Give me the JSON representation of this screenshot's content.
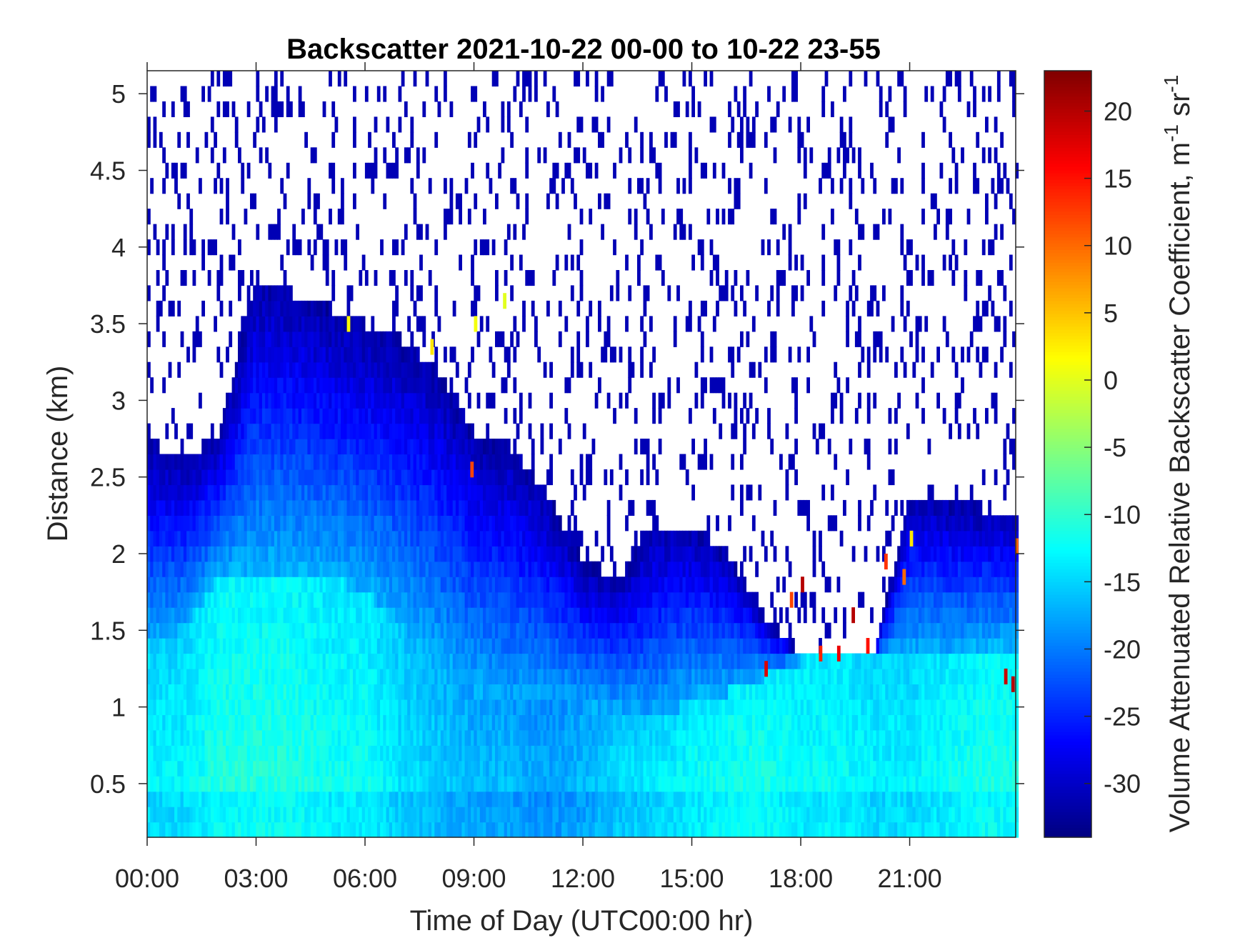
{
  "chart_data": {
    "type": "heatmap",
    "title": "Backscatter 2021-10-22 00-00 to 10-22 23-55",
    "xlabel": "Time of Day (UTC00:00 hr)",
    "ylabel": "Distance (km)",
    "colorbar_label": "Volume Attenuated Relative Backscatter Coefficient, m",
    "colorbar_label_sup1": "-1",
    "colorbar_label_mid": " sr",
    "colorbar_label_sup2": "-1",
    "colormap": "jet",
    "xlim": [
      0,
      23.92
    ],
    "ylim": [
      0.15,
      5.15
    ],
    "clim": [
      -34,
      23
    ],
    "x_ticks": [
      0,
      3,
      6,
      9,
      12,
      15,
      18,
      21
    ],
    "x_tick_labels": [
      "00:00",
      "03:00",
      "06:00",
      "09:00",
      "12:00",
      "15:00",
      "18:00",
      "21:00"
    ],
    "y_ticks": [
      0.5,
      1,
      1.5,
      2,
      2.5,
      3,
      3.5,
      4,
      4.5,
      5
    ],
    "y_tick_labels": [
      "0.5",
      "1",
      "1.5",
      "2",
      "2.5",
      "3",
      "3.5",
      "4",
      "4.5",
      "5"
    ],
    "colorbar_ticks": [
      -30,
      -25,
      -20,
      -15,
      -10,
      -5,
      0,
      5,
      10,
      15,
      20
    ],
    "colorbar_tick_labels": [
      "-30",
      "-25",
      "-20",
      "-15",
      "-10",
      "-5",
      "0",
      "5",
      "10",
      "15",
      "20"
    ],
    "time_resolution_hr": 0.0833,
    "height_resolution_km": 0.1,
    "profile_times_hr": [
      0,
      1,
      2,
      3,
      4,
      5,
      6,
      7,
      8,
      9,
      10,
      11,
      12,
      13,
      14,
      15,
      16,
      17,
      18,
      19,
      20,
      21,
      22,
      23
    ],
    "signal_top_km": [
      2.75,
      2.6,
      2.8,
      3.8,
      3.7,
      3.6,
      3.5,
      3.4,
      3.2,
      2.8,
      2.7,
      2.4,
      1.95,
      1.85,
      2.2,
      2.2,
      2.0,
      1.6,
      1.35,
      1.3,
      1.3,
      2.4,
      2.35,
      2.3
    ],
    "mixed_layer_top_km": [
      1.4,
      1.5,
      1.85,
      1.9,
      1.9,
      1.85,
      1.75,
      1.55,
      1.3,
      1.1,
      1.0,
      1.0,
      1.0,
      0.95,
      0.9,
      1.05,
      1.1,
      1.2,
      1.3,
      1.35,
      1.35,
      1.35,
      1.35,
      1.4
    ],
    "mixed_layer_value": [
      -12,
      -12,
      -10,
      -10,
      -10,
      -11,
      -11,
      -13,
      -14,
      -15,
      -15,
      -16,
      -15,
      -13,
      -12,
      -11,
      -10,
      -10,
      -11,
      -11,
      -12,
      -12,
      -11,
      -10
    ],
    "cloud_events": [
      {
        "time_hr": 5.5,
        "height_km": 3.45,
        "value": 2
      },
      {
        "time_hr": 7.8,
        "height_km": 3.3,
        "value": 3
      },
      {
        "time_hr": 9.0,
        "height_km": 3.45,
        "value": 1
      },
      {
        "time_hr": 9.8,
        "height_km": 3.6,
        "value": 0
      },
      {
        "time_hr": 8.9,
        "height_km": 2.5,
        "value": 12
      },
      {
        "time_hr": 17.0,
        "height_km": 1.2,
        "value": 18
      },
      {
        "time_hr": 17.7,
        "height_km": 1.65,
        "value": 12
      },
      {
        "time_hr": 18.0,
        "height_km": 1.75,
        "value": 20
      },
      {
        "time_hr": 18.5,
        "height_km": 1.3,
        "value": 14
      },
      {
        "time_hr": 19.0,
        "height_km": 1.3,
        "value": 17
      },
      {
        "time_hr": 19.4,
        "height_km": 1.55,
        "value": 20
      },
      {
        "time_hr": 19.8,
        "height_km": 1.35,
        "value": 15
      },
      {
        "time_hr": 20.3,
        "height_km": 1.9,
        "value": 13
      },
      {
        "time_hr": 20.8,
        "height_km": 1.8,
        "value": 10
      },
      {
        "time_hr": 21.0,
        "height_km": 2.05,
        "value": 3
      },
      {
        "time_hr": 23.6,
        "height_km": 1.15,
        "value": 19
      },
      {
        "time_hr": 23.8,
        "height_km": 1.1,
        "value": 20
      },
      {
        "time_hr": 23.9,
        "height_km": 2.0,
        "value": 10
      }
    ]
  }
}
